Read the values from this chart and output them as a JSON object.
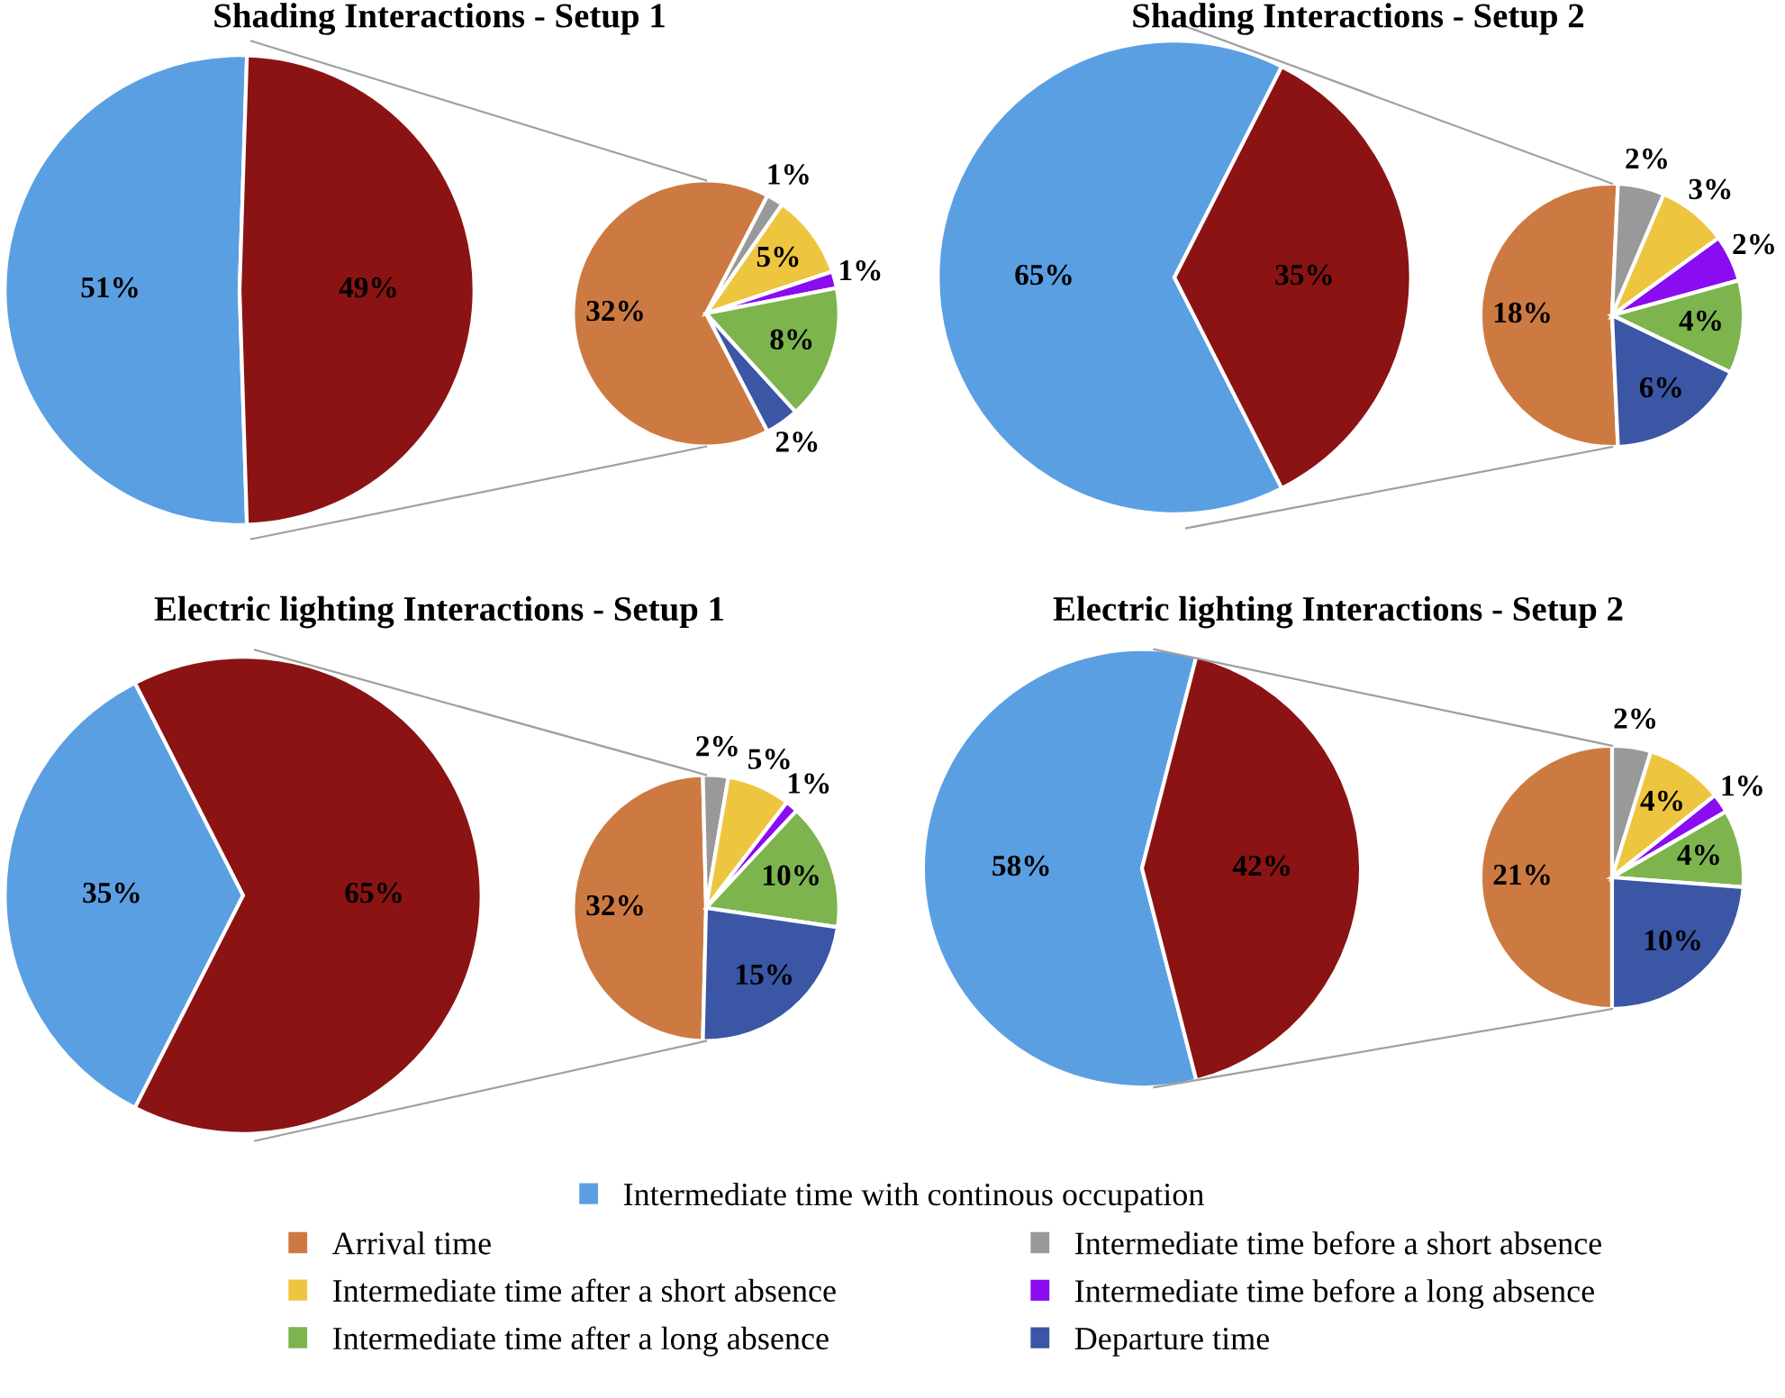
{
  "chart_data": [
    {
      "type": "pie",
      "title": "Shading Interactions - Setup 1",
      "categories": [
        "Intermediate time with continous occupation",
        null
      ],
      "values": [
        51,
        49
      ],
      "colors": [
        "#5b9fe3",
        "#8b1313"
      ],
      "value_labels": [
        "51%",
        "49%"
      ],
      "legend": "bottom"
    },
    {
      "type": "pie",
      "categories": [
        "Arrival time",
        "Intermediate time before a short absence",
        "Intermediate time after a short absence",
        "Intermediate time before a long absence",
        "Intermediate time after a long absence",
        "Departure time"
      ],
      "values": [
        32,
        1,
        5,
        1,
        8,
        2
      ],
      "colors": [
        "#cd7a42",
        "#999999",
        "#eec53f",
        "#8a0cf0",
        "#7db44e",
        "#3a56a5"
      ],
      "value_labels": [
        "32%",
        "1%",
        "5%",
        "1%",
        "8%",
        "2%"
      ],
      "legend": "bottom"
    },
    {
      "type": "pie",
      "title": "Shading Interactions - Setup 2",
      "categories": [
        null,
        null
      ],
      "values": [
        65,
        35
      ],
      "colors": [
        "#5b9fe3",
        "#8b1313"
      ],
      "value_labels": [
        "65%",
        "35%"
      ]
    },
    {
      "type": "pie",
      "categories": [
        null,
        null,
        null,
        null,
        null,
        null
      ],
      "values": [
        18,
        2,
        3,
        2,
        4,
        6
      ],
      "colors": [
        "#cd7a42",
        "#999999",
        "#eec53f",
        "#8a0cf0",
        "#7db44e",
        "#3a56a5"
      ],
      "value_labels": [
        "18%",
        "2%",
        "3%",
        "2%",
        "4%",
        "6%"
      ]
    },
    {
      "type": "pie",
      "title": "Electric lighting Interactions - Setup 1",
      "categories": [
        null,
        null
      ],
      "values": [
        35,
        65
      ],
      "colors": [
        "#5b9fe3",
        "#8b1313"
      ],
      "value_labels": [
        "35%",
        "65%"
      ]
    },
    {
      "type": "pie",
      "categories": [
        null,
        null,
        null,
        null,
        null,
        null
      ],
      "values": [
        32,
        2,
        5,
        1,
        10,
        15
      ],
      "colors": [
        "#cd7a42",
        "#999999",
        "#eec53f",
        "#8a0cf0",
        "#7db44e",
        "#3a56a5"
      ],
      "value_labels": [
        "32%",
        "2%",
        "5%",
        "1%",
        "10%",
        "15%"
      ]
    },
    {
      "type": "pie",
      "title": "Electric lighting Interactions - Setup 2",
      "categories": [
        null,
        null
      ],
      "values": [
        58,
        42
      ],
      "colors": [
        "#5b9fe3",
        "#8b1313"
      ],
      "value_labels": [
        "58%",
        "42%"
      ]
    },
    {
      "type": "pie",
      "categories": [
        null,
        null,
        null,
        null,
        null,
        null
      ],
      "values": [
        21,
        2,
        4,
        1,
        4,
        10
      ],
      "colors": [
        "#cd7a42",
        "#999999",
        "#eec53f",
        "#8a0cf0",
        "#7db44e",
        "#3a56a5"
      ],
      "value_labels": [
        "21%",
        "2%",
        "4%",
        "1%",
        "4%",
        "10%"
      ]
    }
  ]
}
